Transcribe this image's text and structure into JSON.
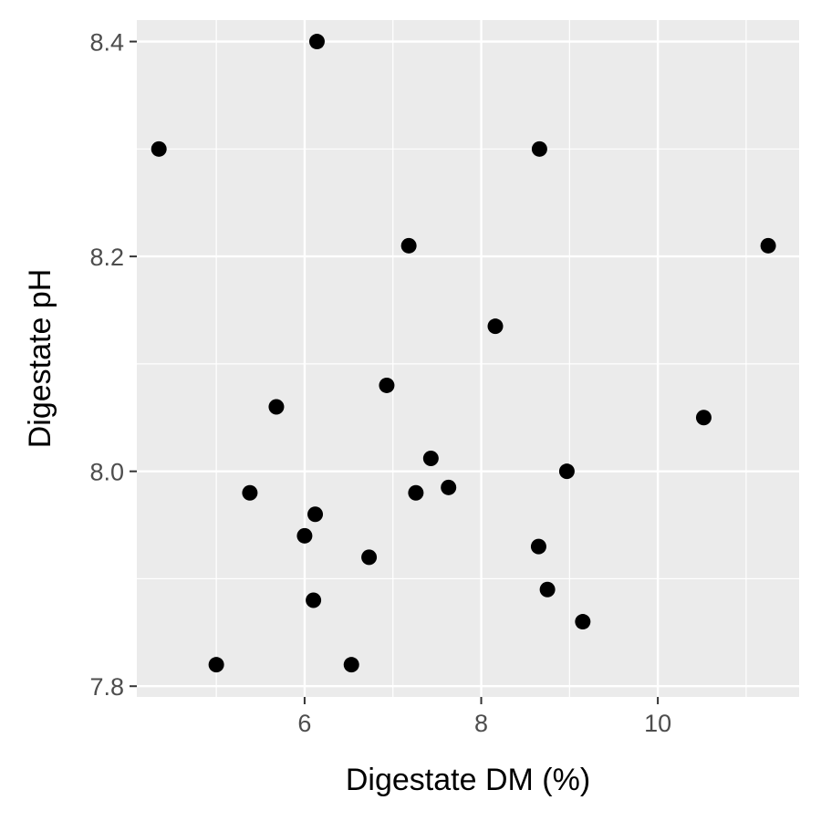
{
  "chart_data": {
    "type": "scatter",
    "title": "",
    "xlabel": "Digestate DM (%)",
    "ylabel": "Digestate pH",
    "xlim": [
      4.1,
      11.6
    ],
    "ylim": [
      7.79,
      8.42
    ],
    "x_ticks": [
      6,
      8,
      10
    ],
    "x_tick_labels": [
      "6",
      "8",
      "10"
    ],
    "x_minor_ticks": [
      5,
      7,
      9,
      11
    ],
    "y_ticks": [
      7.8,
      8.0,
      8.2,
      8.4
    ],
    "y_tick_labels": [
      "7.8",
      "8.0",
      "8.2",
      "8.4"
    ],
    "y_minor_ticks": [
      7.9,
      8.1,
      8.3
    ],
    "grid": true,
    "legend": "none",
    "colors": {
      "panel_background": "#ebebeb",
      "grid": "#ffffff",
      "point": "#000000",
      "tick_label": "#4d4d4d",
      "tick_mark": "#333333",
      "axis_title": "#000000"
    },
    "series": [
      {
        "points": [
          {
            "x": 4.35,
            "y": 8.3
          },
          {
            "x": 5.0,
            "y": 7.82
          },
          {
            "x": 5.38,
            "y": 7.98
          },
          {
            "x": 5.68,
            "y": 8.06
          },
          {
            "x": 6.0,
            "y": 7.94
          },
          {
            "x": 6.1,
            "y": 7.88
          },
          {
            "x": 6.12,
            "y": 7.96
          },
          {
            "x": 6.14,
            "y": 8.4
          },
          {
            "x": 6.53,
            "y": 7.82
          },
          {
            "x": 6.73,
            "y": 7.92
          },
          {
            "x": 6.93,
            "y": 8.08
          },
          {
            "x": 7.18,
            "y": 8.21
          },
          {
            "x": 7.26,
            "y": 7.98
          },
          {
            "x": 7.43,
            "y": 8.012
          },
          {
            "x": 7.63,
            "y": 7.985
          },
          {
            "x": 8.16,
            "y": 8.135
          },
          {
            "x": 8.65,
            "y": 7.93
          },
          {
            "x": 8.66,
            "y": 8.3
          },
          {
            "x": 8.75,
            "y": 7.89
          },
          {
            "x": 8.97,
            "y": 8.0
          },
          {
            "x": 9.15,
            "y": 7.86
          },
          {
            "x": 10.52,
            "y": 8.05
          },
          {
            "x": 11.25,
            "y": 8.21
          }
        ]
      }
    ]
  }
}
